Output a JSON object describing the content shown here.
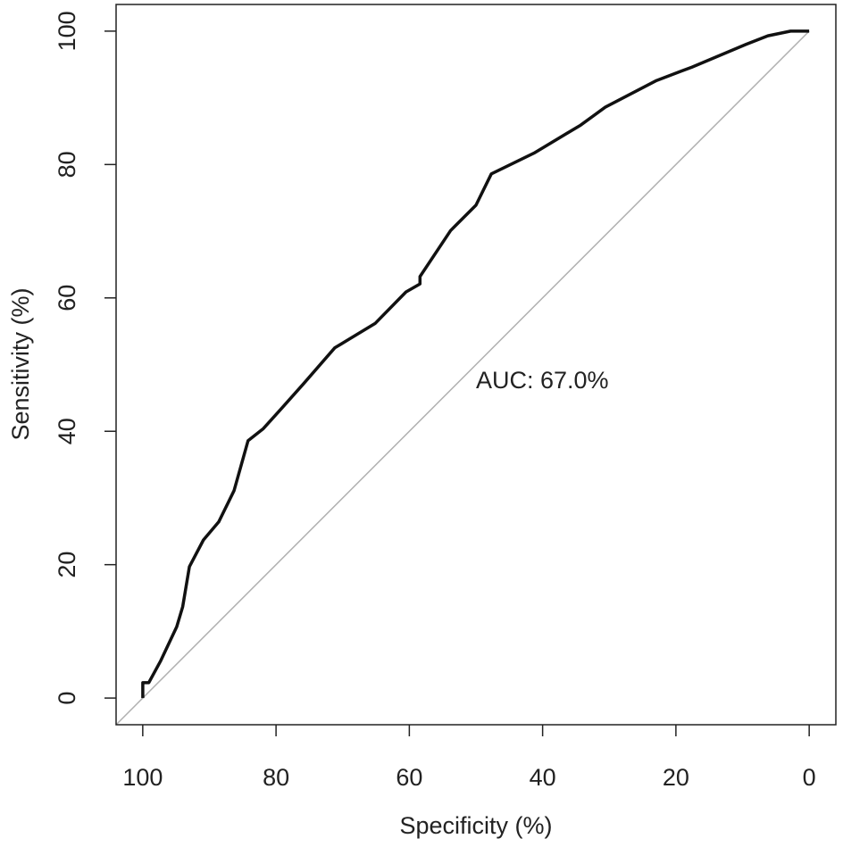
{
  "chart_data": {
    "type": "line",
    "x_label": "Specificity (%)",
    "y_label": "Sensitivity (%)",
    "annotation": "AUC: 67.0%",
    "color": "#111111",
    "reference_color": "#b0b0b0",
    "x": [
      100,
      100,
      99.1,
      97.3,
      94.9,
      94.0,
      93.0,
      90.9,
      88.6,
      86.3,
      84.2,
      81.9,
      79.2,
      75.9,
      71.2,
      65.1,
      60.5,
      58.4,
      58.4,
      53.8,
      50.0,
      47.7,
      41.3,
      34.3,
      30.6,
      22.9,
      17.6,
      9.5,
      6.2,
      2.8,
      0
    ],
    "values": [
      0,
      2.3,
      2.3,
      5.6,
      10.7,
      13.7,
      19.7,
      23.7,
      26.4,
      31.1,
      38.6,
      40.4,
      43.4,
      47.1,
      52.5,
      56.2,
      60.9,
      62.1,
      63.2,
      70.1,
      73.9,
      78.6,
      81.7,
      85.9,
      88.6,
      92.6,
      94.6,
      98.0,
      99.3,
      100,
      100
    ],
    "xlim": [
      104,
      -4
    ],
    "ylim": [
      -4,
      104
    ],
    "xticks": [
      100,
      80,
      60,
      40,
      20,
      0
    ],
    "yticks": [
      0,
      20,
      40,
      60,
      80,
      100
    ]
  }
}
